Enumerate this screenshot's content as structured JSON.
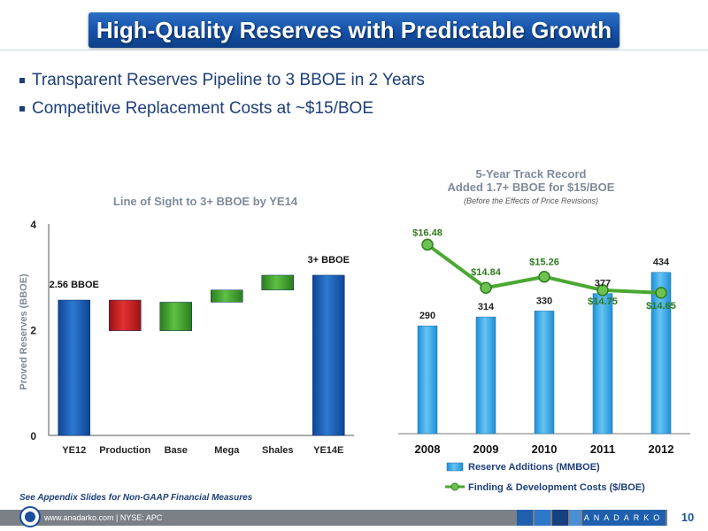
{
  "page_title": "High-Quality Reserves with Predictable Growth",
  "bullets": [
    "Transparent Reserves Pipeline to 3 BBOE in 2 Years",
    "Competitive Replacement Costs at ~$15/BOE"
  ],
  "footnote": "See Appendix Slides for Non-GAAP Financial Measures",
  "footer": {
    "text": "www.anadarko.com | NYSE: APC",
    "brand": "ANADARKO",
    "page_number": "10"
  },
  "colors": {
    "title_blue": "#1451a8",
    "bar_blue": "#1a5db3",
    "bar_red": "#c81e1e",
    "bar_green": "#3d9b2b",
    "light_blue": "#3aa9e6",
    "line_green": "#4aa832",
    "text_blue": "#1d3f7a"
  },
  "chart_data": [
    {
      "type": "bar",
      "subtype": "waterfall",
      "title": "Line of Sight to 3+ BBOE by YE14",
      "ylabel": "Proved Reserves (BBOE)",
      "ylim": [
        0,
        4
      ],
      "yticks": [
        0,
        2,
        4
      ],
      "categories": [
        "YE12",
        "Production",
        "Base",
        "Mega",
        "Shales",
        "YE14E"
      ],
      "bars": [
        {
          "category": "YE12",
          "start": 0,
          "end": 2.56,
          "kind": "total",
          "color": "#1a5db3"
        },
        {
          "category": "Production",
          "start": 1.98,
          "end": 2.56,
          "kind": "decrease",
          "color": "#c81e1e"
        },
        {
          "category": "Base",
          "start": 1.98,
          "end": 2.52,
          "kind": "increase",
          "color": "#3d9b2b"
        },
        {
          "category": "Mega",
          "start": 2.52,
          "end": 2.75,
          "kind": "increase",
          "color": "#3d9b2b"
        },
        {
          "category": "Shales",
          "start": 2.75,
          "end": 3.03,
          "kind": "increase",
          "color": "#3d9b2b"
        },
        {
          "category": "YE14E",
          "start": 0,
          "end": 3.03,
          "kind": "total",
          "color": "#1a5db3"
        }
      ],
      "annotations": [
        {
          "category": "YE12",
          "text": "2.56 BBOE"
        },
        {
          "category": "YE14E",
          "text": "3+ BBOE"
        }
      ]
    },
    {
      "type": "bar",
      "subtype": "bar+line",
      "title": "5-Year Track Record",
      "subtitle": "Added 1.7+ BBOE for $15/BOE",
      "note": "(Before the Effects of Price Revisions)",
      "categories": [
        "2008",
        "2009",
        "2010",
        "2011",
        "2012"
      ],
      "series": [
        {
          "name": "Reserve Additions (MMBOE)",
          "type": "bar",
          "values": [
            290,
            314,
            330,
            377,
            434
          ],
          "labels": [
            "290",
            "314",
            "330",
            "377",
            "434"
          ],
          "color": "#3aa9e6"
        },
        {
          "name": "Finding & Development Costs ($/BOE)",
          "type": "line",
          "values": [
            16.48,
            14.84,
            15.26,
            14.75,
            14.65
          ],
          "labels": [
            "$16.48",
            "$14.84",
            "$15.26",
            "$14.75",
            "$14.65"
          ],
          "color": "#4aa832"
        }
      ],
      "legend": "bottom"
    }
  ]
}
